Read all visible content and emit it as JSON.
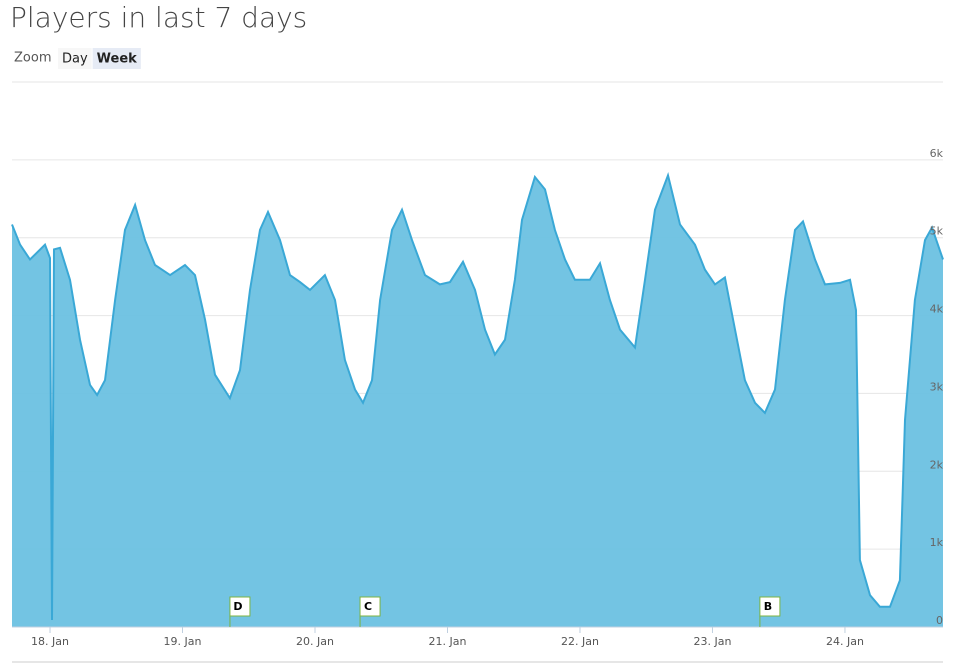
{
  "header": {
    "title": "Players in last 7 days"
  },
  "zoom": {
    "label": "Zoom",
    "buttons": [
      "Day",
      "Week"
    ],
    "selected": 1
  },
  "chart_data": {
    "type": "area",
    "color": "#6cc1e2",
    "line_color": "#3aa8d6",
    "grid": true,
    "x": [
      17.713,
      17.774,
      17.849,
      17.962,
      18.0,
      18.015,
      18.03,
      18.075,
      18.151,
      18.226,
      18.302,
      18.355,
      18.415,
      18.491,
      18.566,
      18.642,
      18.717,
      18.792,
      18.906,
      19.019,
      19.094,
      19.17,
      19.245,
      19.358,
      19.434,
      19.509,
      19.585,
      19.645,
      19.736,
      19.811,
      19.887,
      19.962,
      20.075,
      20.151,
      20.226,
      20.302,
      20.362,
      20.43,
      20.491,
      20.581,
      20.657,
      20.732,
      20.83,
      20.943,
      21.019,
      21.117,
      21.208,
      21.283,
      21.358,
      21.434,
      21.509,
      21.562,
      21.66,
      21.736,
      21.811,
      21.887,
      21.962,
      22.075,
      22.151,
      22.226,
      22.302,
      22.415,
      22.491,
      22.566,
      22.664,
      22.755,
      22.868,
      22.943,
      23.019,
      23.094,
      23.17,
      23.245,
      23.321,
      23.396,
      23.472,
      23.547,
      23.623,
      23.683,
      23.774,
      23.849,
      23.962,
      24.038,
      24.083,
      24.113,
      24.189,
      24.264,
      24.34,
      24.415,
      24.453,
      24.528,
      24.604,
      24.657,
      24.74
    ],
    "values": [
      5170,
      4910,
      4720,
      4910,
      4740,
      90,
      4850,
      4870,
      4460,
      3690,
      3110,
      2980,
      3170,
      4200,
      5100,
      5420,
      4970,
      4650,
      4520,
      4650,
      4520,
      3950,
      3240,
      2940,
      3300,
      4330,
      5100,
      5330,
      4970,
      4520,
      4430,
      4330,
      4520,
      4200,
      3430,
      3050,
      2880,
      3170,
      4200,
      5100,
      5360,
      4970,
      4520,
      4400,
      4430,
      4690,
      4330,
      3820,
      3500,
      3690,
      4460,
      5230,
      5780,
      5620,
      5100,
      4720,
      4460,
      4460,
      4670,
      4200,
      3820,
      3590,
      4460,
      5360,
      5800,
      5170,
      4910,
      4590,
      4400,
      4490,
      3820,
      3170,
      2880,
      2750,
      3050,
      4200,
      5100,
      5210,
      4720,
      4400,
      4420,
      4460,
      4070,
      860,
      410,
      260,
      260,
      600,
      2660,
      4200,
      4970,
      5130,
      4720
    ],
    "xlim": [
      17.713,
      24.74
    ],
    "ylim": [
      0,
      7000
    ],
    "xticks": [
      {
        "value": 18,
        "label": "18. Jan"
      },
      {
        "value": 19,
        "label": "19. Jan"
      },
      {
        "value": 20,
        "label": "20. Jan"
      },
      {
        "value": 21,
        "label": "21. Jan"
      },
      {
        "value": 22,
        "label": "22. Jan"
      },
      {
        "value": 23,
        "label": "23. Jan"
      },
      {
        "value": 24,
        "label": "24. Jan"
      }
    ],
    "yticks": [
      0,
      {
        "value": 1000,
        "label": "1k"
      },
      {
        "value": 2000,
        "label": "2k"
      },
      {
        "value": 3000,
        "label": "3k"
      },
      {
        "value": 4000,
        "label": "4k"
      },
      {
        "value": 5000,
        "label": "5k"
      },
      {
        "value": 6000,
        "label": "6k"
      }
    ],
    "flags": [
      {
        "x": 19.358,
        "title": "D"
      },
      {
        "x": 20.34,
        "title": "C"
      },
      {
        "x": 23.358,
        "title": "B"
      }
    ]
  }
}
